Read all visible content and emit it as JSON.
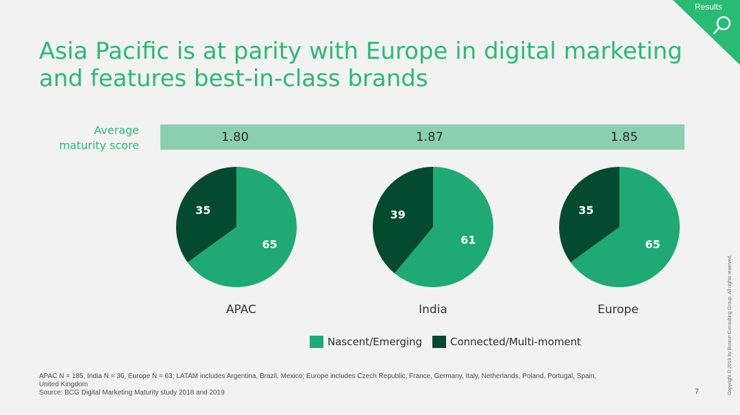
{
  "header": {
    "section_tab": "Results",
    "title_line1": "Asia Pacific is at parity with Europe in digital marketing",
    "title_line2": "and features best-in-class brands"
  },
  "maturity": {
    "label_line1": "Average",
    "label_line2": "maturity score"
  },
  "colors": {
    "accent": "#29ba74",
    "nascent": "#1fa974",
    "connected": "#034a30",
    "band": "#8ccfb0"
  },
  "chart_data": [
    {
      "type": "pie",
      "title": "APAC",
      "score": "1.80",
      "categories": [
        "Nascent/Emerging",
        "Connected/Multi-moment"
      ],
      "values": [
        65,
        35
      ]
    },
    {
      "type": "pie",
      "title": "India",
      "score": "1.87",
      "categories": [
        "Nascent/Emerging",
        "Connected/Multi-moment"
      ],
      "values": [
        61,
        39
      ]
    },
    {
      "type": "pie",
      "title": "Europe",
      "score": "1.85",
      "categories": [
        "Nascent/Emerging",
        "Connected/Multi-moment"
      ],
      "values": [
        65,
        35
      ]
    }
  ],
  "legend": {
    "nascent": "Nascent/Emerging",
    "connected": "Connected/Multi-moment"
  },
  "footer": {
    "note_line1": "APAC N = 185, India N = 36, Europe N = 63; LATAM includes Argentina, Brazil, Mexico; Europe includes Czech Republic, France, Germany, Italy, Netherlands, Poland, Portugal, Spain,",
    "note_line2": "United Kingdom",
    "source": "Source: BCG Digital Marketing Maturity study 2018 and 2019",
    "page_number": "7",
    "copyright": "Copyright © 2019 by Boston Consulting Group. All rights reserved."
  }
}
